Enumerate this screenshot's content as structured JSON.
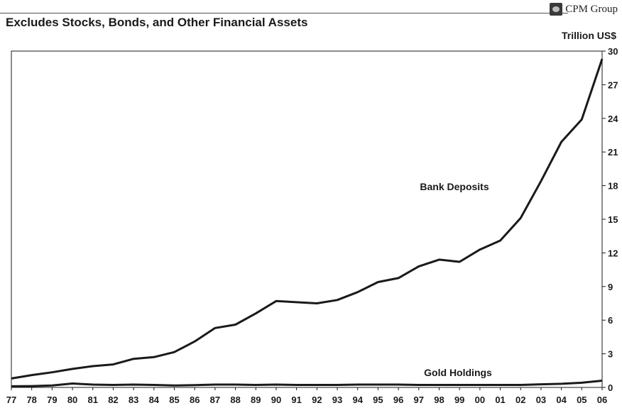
{
  "header": {
    "brand": "CPM Group",
    "brand_icon": "cpm-logo-icon"
  },
  "chart_data": {
    "type": "line",
    "title": "Excludes Stocks, Bonds, and Other Financial Assets",
    "ylabel": "Trillion US$",
    "xlabel": "",
    "ylim": [
      0,
      30
    ],
    "yticks": [
      0,
      3,
      6,
      9,
      12,
      15,
      18,
      21,
      24,
      27,
      30
    ],
    "x": [
      "77",
      "78",
      "79",
      "80",
      "81",
      "82",
      "83",
      "84",
      "85",
      "86",
      "87",
      "88",
      "89",
      "90",
      "91",
      "92",
      "93",
      "94",
      "95",
      "96",
      "97",
      "98",
      "99",
      "00",
      "01",
      "02",
      "03",
      "04",
      "05",
      "06"
    ],
    "grid": false,
    "series": [
      {
        "name": "Bank Deposits",
        "color": "#1a1a1a",
        "values": [
          0.8,
          1.1,
          1.35,
          1.65,
          1.9,
          2.05,
          2.55,
          2.7,
          3.15,
          4.1,
          5.3,
          5.6,
          6.6,
          7.7,
          7.6,
          7.5,
          7.8,
          8.5,
          9.4,
          9.75,
          10.8,
          11.4,
          11.2,
          12.3,
          13.1,
          15.1,
          18.4,
          21.9,
          23.9,
          29.3
        ]
      },
      {
        "name": "Gold Holdings",
        "color": "#1a1a1a",
        "values": [
          0.1,
          0.12,
          0.18,
          0.35,
          0.25,
          0.22,
          0.25,
          0.22,
          0.18,
          0.2,
          0.25,
          0.25,
          0.22,
          0.25,
          0.22,
          0.22,
          0.22,
          0.25,
          0.25,
          0.25,
          0.22,
          0.22,
          0.22,
          0.22,
          0.22,
          0.22,
          0.28,
          0.32,
          0.42,
          0.6
        ]
      }
    ]
  }
}
